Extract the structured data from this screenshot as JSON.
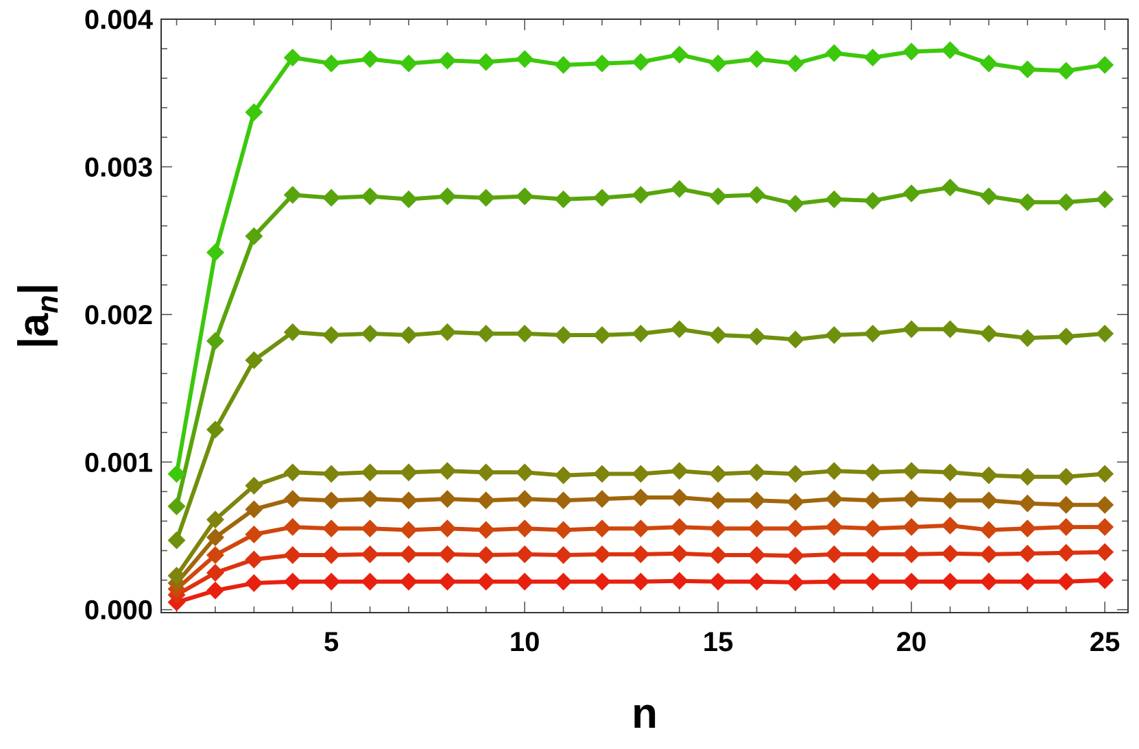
{
  "chart_data": {
    "type": "line",
    "xlabel": "n",
    "ylabel": {
      "base": "|a",
      "sub": "n",
      "close": "|"
    },
    "xlim": [
      0.6,
      25.6
    ],
    "ylim": [
      -2e-05,
      0.004
    ],
    "x_ticks": [
      5,
      10,
      15,
      20,
      25
    ],
    "x_tick_labels": [
      "5",
      "10",
      "15",
      "20",
      "25"
    ],
    "y_ticks": [
      0,
      0.001,
      0.002,
      0.003,
      0.004
    ],
    "y_tick_labels": [
      "0.000",
      "0.001",
      "0.002",
      "0.003",
      "0.004"
    ],
    "marker": "diamond",
    "grid": false,
    "x": [
      1,
      2,
      3,
      4,
      5,
      6,
      7,
      8,
      9,
      10,
      11,
      12,
      13,
      14,
      15,
      16,
      17,
      18,
      19,
      20,
      21,
      22,
      23,
      24,
      25
    ],
    "series": [
      {
        "color": "#e8200f",
        "values": [
          5e-05,
          0.00013,
          0.00018,
          0.00019,
          0.00019,
          0.00019,
          0.00019,
          0.00019,
          0.00019,
          0.00019,
          0.00019,
          0.00019,
          0.00019,
          0.000195,
          0.00019,
          0.00019,
          0.000185,
          0.00019,
          0.00019,
          0.00019,
          0.00019,
          0.00019,
          0.00019,
          0.00019,
          0.0002
        ]
      },
      {
        "color": "#dc320f",
        "values": [
          0.0001,
          0.00025,
          0.00034,
          0.00037,
          0.00037,
          0.000375,
          0.000375,
          0.000375,
          0.00037,
          0.000375,
          0.00037,
          0.000375,
          0.000375,
          0.00038,
          0.00037,
          0.00037,
          0.000365,
          0.000375,
          0.000375,
          0.000375,
          0.00038,
          0.000375,
          0.00038,
          0.000385,
          0.00039
        ]
      },
      {
        "color": "#d0460c",
        "values": [
          0.00014,
          0.00037,
          0.00051,
          0.00056,
          0.00055,
          0.00055,
          0.00054,
          0.00055,
          0.00054,
          0.00055,
          0.00054,
          0.00055,
          0.00055,
          0.00056,
          0.00055,
          0.00055,
          0.00055,
          0.00056,
          0.00055,
          0.00056,
          0.00057,
          0.00054,
          0.00055,
          0.00056,
          0.00056
        ]
      },
      {
        "color": "#a0660c",
        "values": [
          0.00018,
          0.00049,
          0.00068,
          0.00075,
          0.00074,
          0.00075,
          0.00074,
          0.00075,
          0.00074,
          0.00075,
          0.00074,
          0.00075,
          0.00076,
          0.00076,
          0.00074,
          0.00074,
          0.00073,
          0.00075,
          0.00074,
          0.00075,
          0.00074,
          0.00074,
          0.00072,
          0.00071,
          0.00071
        ]
      },
      {
        "color": "#7e840c",
        "values": [
          0.00023,
          0.00061,
          0.00084,
          0.00093,
          0.00092,
          0.00093,
          0.00093,
          0.00094,
          0.00093,
          0.00093,
          0.00091,
          0.00092,
          0.00092,
          0.00094,
          0.00092,
          0.00093,
          0.00092,
          0.00094,
          0.00093,
          0.00094,
          0.00093,
          0.00091,
          0.0009,
          0.0009,
          0.00092
        ]
      },
      {
        "color": "#6e900c",
        "values": [
          0.00047,
          0.00122,
          0.00169,
          0.00188,
          0.00186,
          0.00187,
          0.00186,
          0.00188,
          0.00187,
          0.00187,
          0.00186,
          0.00186,
          0.00187,
          0.0019,
          0.00186,
          0.00185,
          0.00183,
          0.00186,
          0.00187,
          0.0019,
          0.0019,
          0.00187,
          0.00184,
          0.00185,
          0.00187
        ]
      },
      {
        "color": "#58a40c",
        "values": [
          0.0007,
          0.00182,
          0.00253,
          0.00281,
          0.00279,
          0.0028,
          0.00278,
          0.0028,
          0.00279,
          0.0028,
          0.00278,
          0.00279,
          0.00281,
          0.00285,
          0.0028,
          0.00281,
          0.00275,
          0.00278,
          0.00277,
          0.00282,
          0.00286,
          0.0028,
          0.00276,
          0.00276,
          0.00278
        ]
      },
      {
        "color": "#3cc80c",
        "values": [
          0.00092,
          0.00242,
          0.00337,
          0.00374,
          0.0037,
          0.00373,
          0.0037,
          0.00372,
          0.00371,
          0.00373,
          0.00369,
          0.0037,
          0.00371,
          0.00376,
          0.0037,
          0.00373,
          0.0037,
          0.00377,
          0.00374,
          0.00378,
          0.00379,
          0.0037,
          0.00366,
          0.00365,
          0.00369
        ]
      }
    ]
  }
}
